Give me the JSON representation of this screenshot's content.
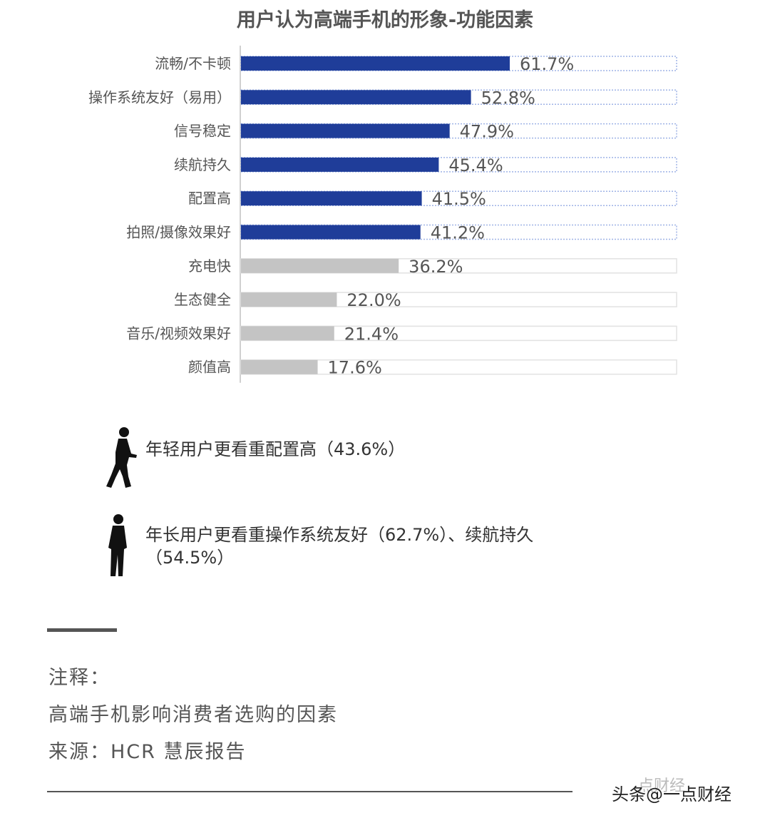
{
  "chart_data": {
    "type": "bar",
    "orientation": "horizontal",
    "title": "用户认为高端手机的形象-功能因素",
    "categories": [
      "流畅/不卡顿",
      "操作系统友好（易用）",
      "信号稳定",
      "续航持久",
      "配置高",
      "拍照/摄像效果好",
      "充电快",
      "生态健全",
      "音乐/视频效果好",
      "颜值高"
    ],
    "values": [
      61.7,
      52.8,
      47.9,
      45.4,
      41.5,
      41.2,
      36.2,
      22.0,
      21.4,
      17.6
    ],
    "value_labels": [
      "61.7%",
      "52.8%",
      "47.9%",
      "45.4%",
      "41.5%",
      "41.2%",
      "36.2%",
      "22.0%",
      "21.4%",
      "17.6%"
    ],
    "highlight_count": 6,
    "xlim": [
      0,
      100
    ],
    "colors": {
      "highlight": "#1f3d99",
      "other": "#c4c4c4",
      "track_border": "#9fb3e6"
    }
  },
  "notes": [
    {
      "icon": "young-person-icon",
      "text": "年轻用户更看重配置高（43.6%）"
    },
    {
      "icon": "older-person-icon",
      "text": "年长用户更看重操作系统友好（62.7%）、续航持久（54.5%）"
    }
  ],
  "footnote": {
    "label": "注释：",
    "line1": "高端手机影响消费者选购的因素",
    "line2": "来源：HCR 慧辰报告"
  },
  "watermark": {
    "main": "头条@一点财经",
    "faint": "点财经"
  }
}
